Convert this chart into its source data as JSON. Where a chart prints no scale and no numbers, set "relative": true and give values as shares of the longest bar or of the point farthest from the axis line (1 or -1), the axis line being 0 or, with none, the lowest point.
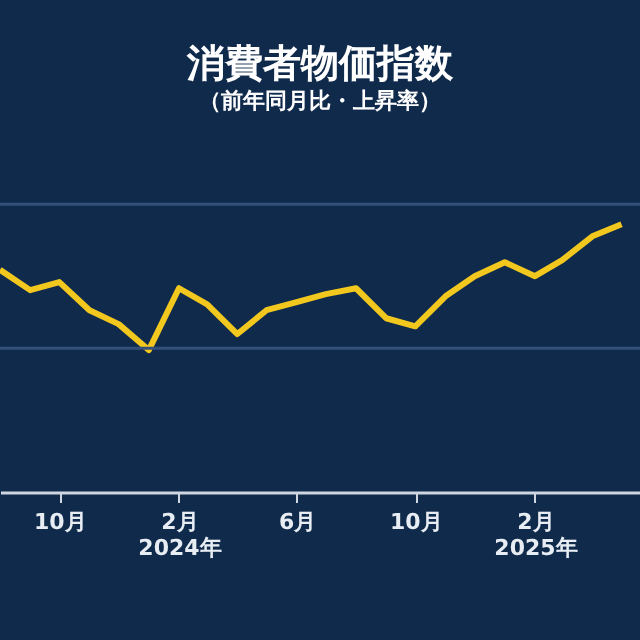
{
  "chart_data": {
    "type": "line",
    "title": "消費者物価指数",
    "subtitle": "（前年同月比・上昇率）",
    "relative": true,
    "x": [
      "2023-08",
      "2023-09",
      "2023-10",
      "2023-11",
      "2023-12",
      "2024-01",
      "2024-02",
      "2024-03",
      "2024-04",
      "2024-05",
      "2024-06",
      "2024-07",
      "2024-08",
      "2024-09",
      "2024-10",
      "2024-11",
      "2024-12",
      "2025-01",
      "2025-02",
      "2025-03",
      "2025-04",
      "2025-05"
    ],
    "series": [
      {
        "color": "#f2c81e",
        "values": [
          0.83,
          0.754,
          0.784,
          0.679,
          0.627,
          0.53,
          0.761,
          0.701,
          0.59,
          0.679,
          0.709,
          0.739,
          0.761,
          0.649,
          0.619,
          0.731,
          0.806,
          0.858,
          0.806,
          0.866,
          0.955,
          1.0
        ]
      }
    ],
    "xlim": [
      "2023-08-01",
      "2025-05-20"
    ],
    "xticks": [
      {
        "value": "2023-10",
        "label": "10月"
      },
      {
        "value": "2024-02",
        "label": "2月\n2024年"
      },
      {
        "value": "2024-06",
        "label": "6月"
      },
      {
        "value": "2024-10",
        "label": "10月"
      },
      {
        "value": "2025-02",
        "label": "2月\n2025年"
      }
    ],
    "ref_lines": [
      {
        "axis": "y",
        "value": 0.537,
        "color": "#34507a"
      },
      {
        "axis": "y",
        "value": 1.075,
        "color": "#34507a"
      }
    ],
    "legend": false,
    "marker": "none",
    "line_style": "solid"
  }
}
